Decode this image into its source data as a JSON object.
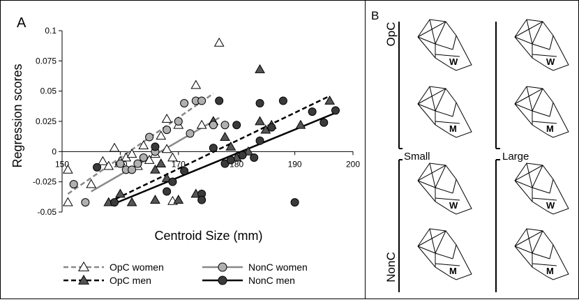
{
  "panel_a": {
    "label": "A",
    "xlabel": "Centroid Size (mm)",
    "ylabel": "Regression scores"
  },
  "panel_b": {
    "label": "B",
    "group_top": "OpC",
    "group_bottom": "NonC",
    "size_small": "Small",
    "size_large": "Large",
    "sex_women": "W",
    "sex_men": "M"
  },
  "chart_data": {
    "type": "scatter",
    "xlabel": "Centroid Size (mm)",
    "ylabel": "Regression scores",
    "xlim": [
      150,
      200
    ],
    "ylim": [
      -0.05,
      0.1
    ],
    "xticks": [
      150,
      160,
      170,
      180,
      190,
      200
    ],
    "yticks": [
      -0.05,
      -0.025,
      0,
      0.025,
      0.05,
      0.075,
      0.1
    ],
    "xtick_labels": [
      "150",
      "160",
      "170",
      "180",
      "190",
      "200"
    ],
    "ytick_labels": [
      "-0.05",
      "-0.025",
      "0",
      "0.025",
      "0.05",
      "0.075",
      "0.1"
    ],
    "legend_position": "bottom",
    "series": [
      {
        "name": "OpC women",
        "marker": "triangle-open",
        "line": "dashed",
        "line_color": "#888888",
        "fit": [
          [
            151,
            -0.035
          ],
          [
            176,
            0.048
          ]
        ],
        "points": [
          [
            151,
            -0.015
          ],
          [
            151,
            -0.042
          ],
          [
            155,
            -0.027
          ],
          [
            157,
            -0.008
          ],
          [
            158,
            -0.012
          ],
          [
            159,
            0.003
          ],
          [
            160,
            -0.008
          ],
          [
            161,
            -0.005
          ],
          [
            162,
            -0.002
          ],
          [
            163,
            -0.012
          ],
          [
            164,
            0.005
          ],
          [
            165,
            -0.007
          ],
          [
            166,
            -0.002
          ],
          [
            167,
            0.013
          ],
          [
            168,
            0.027
          ],
          [
            168,
            0.002
          ],
          [
            169,
            -0.005
          ],
          [
            169,
            -0.041
          ],
          [
            170,
            0.022
          ],
          [
            173,
            0.055
          ],
          [
            174,
            0.022
          ],
          [
            176,
            0.025
          ],
          [
            177,
            0.09
          ]
        ]
      },
      {
        "name": "OpC men",
        "marker": "triangle-filled",
        "line": "dashed",
        "line_color": "#000000",
        "fit": [
          [
            158,
            -0.042
          ],
          [
            196,
            0.046
          ]
        ],
        "points": [
          [
            158,
            -0.042
          ],
          [
            160,
            -0.035
          ],
          [
            162,
            -0.042
          ],
          [
            166,
            -0.015
          ],
          [
            166,
            -0.04
          ],
          [
            167,
            -0.01
          ],
          [
            168,
            -0.022
          ],
          [
            170,
            -0.04
          ],
          [
            173,
            -0.035
          ],
          [
            176,
            0.025
          ],
          [
            178,
            0.012
          ],
          [
            179,
            0.004
          ],
          [
            180,
            -0.005
          ],
          [
            182,
            0.0
          ],
          [
            184,
            0.025
          ],
          [
            184,
            0.068
          ],
          [
            185,
            0.018
          ],
          [
            186,
            0.022
          ],
          [
            191,
            0.022
          ],
          [
            196,
            0.042
          ]
        ]
      },
      {
        "name": "NonC women",
        "marker": "circle-light",
        "line": "solid",
        "line_color": "#888888",
        "fit": [
          [
            155,
            -0.033
          ],
          [
            177,
            0.028
          ]
        ],
        "points": [
          [
            152,
            -0.027
          ],
          [
            154,
            -0.042
          ],
          [
            160,
            -0.01
          ],
          [
            161,
            -0.015
          ],
          [
            162,
            -0.015
          ],
          [
            163,
            -0.01
          ],
          [
            164,
            -0.005
          ],
          [
            165,
            0.012
          ],
          [
            166,
            0.0
          ],
          [
            168,
            0.018
          ],
          [
            170,
            0.025
          ],
          [
            171,
            0.04
          ],
          [
            172,
            0.015
          ],
          [
            173,
            0.042
          ],
          [
            174,
            0.042
          ],
          [
            176,
            0.022
          ],
          [
            178,
            0.022
          ]
        ]
      },
      {
        "name": "NonC men",
        "marker": "circle-dark",
        "line": "solid",
        "line_color": "#000000",
        "fit": [
          [
            159,
            -0.043
          ],
          [
            197,
            0.032
          ]
        ],
        "points": [
          [
            156,
            -0.013
          ],
          [
            159,
            -0.042
          ],
          [
            166,
            0.004
          ],
          [
            168,
            -0.033
          ],
          [
            169,
            -0.025
          ],
          [
            171,
            -0.016
          ],
          [
            174,
            -0.035
          ],
          [
            174,
            -0.04
          ],
          [
            176,
            0.003
          ],
          [
            177,
            0.042
          ],
          [
            178,
            -0.01
          ],
          [
            179,
            -0.007
          ],
          [
            180,
            0.022
          ],
          [
            181,
            -0.003
          ],
          [
            183,
            -0.005
          ],
          [
            184,
            0.04
          ],
          [
            184,
            0.009
          ],
          [
            186,
            0.02
          ],
          [
            188,
            0.042
          ],
          [
            190,
            -0.042
          ],
          [
            193,
            0.033
          ],
          [
            195,
            0.024
          ],
          [
            197,
            0.034
          ]
        ]
      }
    ]
  }
}
